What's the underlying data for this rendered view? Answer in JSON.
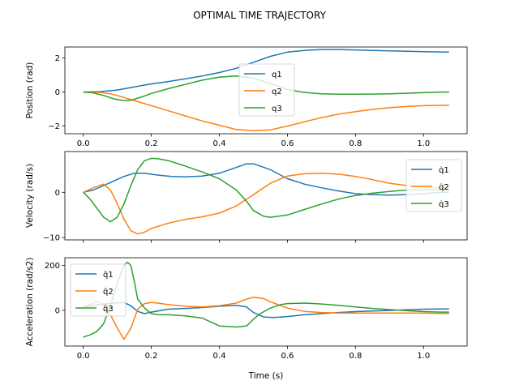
{
  "figure": {
    "title": "OPTIMAL TIME TRAJECTORY",
    "xlabel": "Time (s)"
  },
  "colors": {
    "q1": "#1f77b4",
    "q2": "#ff7f0e",
    "q3": "#2ca02c"
  },
  "chart_data": [
    {
      "type": "line",
      "ylabel": "Position (rad)",
      "xlim": [
        -0.054,
        1.128
      ],
      "ylim": [
        -2.45,
        2.65
      ],
      "xticks": [
        0.0,
        0.2,
        0.4,
        0.6,
        0.8,
        1.0
      ],
      "xtick_labels": [
        "0.0",
        "0.2",
        "0.4",
        "0.6",
        "0.8",
        "1.0"
      ],
      "yticks": [
        -2,
        0,
        2
      ],
      "ytick_labels": [
        "−2",
        "0",
        "2"
      ],
      "grid": false,
      "legend": "center",
      "series": [
        {
          "name": "q1",
          "x": [
            0,
            0.05,
            0.1,
            0.15,
            0.2,
            0.25,
            0.3,
            0.35,
            0.4,
            0.45,
            0.5,
            0.55,
            0.6,
            0.65,
            0.7,
            0.75,
            0.8,
            0.85,
            0.9,
            0.95,
            1.0,
            1.05,
            1.075
          ],
          "y": [
            0,
            0.03,
            0.12,
            0.3,
            0.48,
            0.62,
            0.78,
            0.95,
            1.15,
            1.4,
            1.75,
            2.1,
            2.35,
            2.45,
            2.5,
            2.5,
            2.48,
            2.45,
            2.42,
            2.4,
            2.38,
            2.36,
            2.35
          ]
        },
        {
          "name": "q2",
          "x": [
            0,
            0.05,
            0.08,
            0.1,
            0.15,
            0.2,
            0.25,
            0.3,
            0.35,
            0.4,
            0.45,
            0.5,
            0.55,
            0.6,
            0.65,
            0.7,
            0.75,
            0.8,
            0.85,
            0.9,
            0.95,
            1.0,
            1.05,
            1.075
          ],
          "y": [
            0,
            -0.02,
            -0.1,
            -0.2,
            -0.5,
            -0.8,
            -1.1,
            -1.4,
            -1.7,
            -1.95,
            -2.2,
            -2.28,
            -2.22,
            -2.0,
            -1.75,
            -1.5,
            -1.3,
            -1.15,
            -1.02,
            -0.92,
            -0.85,
            -0.8,
            -0.78,
            -0.78
          ]
        },
        {
          "name": "q3",
          "x": [
            0,
            0.03,
            0.06,
            0.09,
            0.12,
            0.14,
            0.17,
            0.2,
            0.25,
            0.3,
            0.35,
            0.4,
            0.45,
            0.5,
            0.55,
            0.6,
            0.65,
            0.7,
            0.75,
            0.8,
            0.85,
            0.9,
            0.95,
            1.0,
            1.05,
            1.075
          ],
          "y": [
            0,
            -0.05,
            -0.2,
            -0.4,
            -0.5,
            -0.48,
            -0.3,
            -0.08,
            0.2,
            0.45,
            0.7,
            0.88,
            0.95,
            0.82,
            0.5,
            0.15,
            -0.02,
            -0.1,
            -0.13,
            -0.13,
            -0.12,
            -0.1,
            -0.07,
            -0.03,
            0,
            0
          ]
        }
      ]
    },
    {
      "type": "line",
      "ylabel": "Velocity (rad/s)",
      "xlim": [
        -0.054,
        1.128
      ],
      "ylim": [
        -10.5,
        9.0
      ],
      "xticks": [
        0.0,
        0.2,
        0.4,
        0.6,
        0.8,
        1.0
      ],
      "xtick_labels": [
        "",
        "",
        "",
        "",
        "",
        ""
      ],
      "yticks": [
        -10,
        0
      ],
      "ytick_labels": [
        "−10",
        "0"
      ],
      "grid": false,
      "legend": "upper right",
      "series": [
        {
          "name": "q̇1",
          "x": [
            0,
            0.03,
            0.06,
            0.09,
            0.12,
            0.15,
            0.18,
            0.22,
            0.26,
            0.3,
            0.35,
            0.4,
            0.45,
            0.48,
            0.5,
            0.55,
            0.6,
            0.65,
            0.7,
            0.75,
            0.8,
            0.85,
            0.9,
            0.95,
            1.0,
            1.05,
            1.075
          ],
          "y": [
            0,
            0.5,
            1.5,
            2.5,
            3.5,
            4.2,
            4.2,
            3.8,
            3.5,
            3.4,
            3.6,
            4.2,
            5.5,
            6.3,
            6.3,
            5.0,
            3.0,
            1.8,
            1.0,
            0.3,
            -0.3,
            -0.5,
            -0.6,
            -0.5,
            -0.3,
            0.0,
            0.0
          ]
        },
        {
          "name": "q̇2",
          "x": [
            0,
            0.03,
            0.06,
            0.08,
            0.1,
            0.12,
            0.14,
            0.16,
            0.18,
            0.2,
            0.25,
            0.3,
            0.35,
            0.4,
            0.45,
            0.5,
            0.55,
            0.6,
            0.65,
            0.7,
            0.75,
            0.8,
            0.85,
            0.9,
            0.95,
            1.0,
            1.05,
            1.075
          ],
          "y": [
            0,
            1.0,
            1.8,
            0.5,
            -2.5,
            -6.0,
            -8.5,
            -9.2,
            -8.8,
            -8.0,
            -6.8,
            -6.0,
            -5.4,
            -4.6,
            -3.0,
            -0.5,
            2.0,
            3.6,
            4.1,
            4.2,
            4.0,
            3.5,
            2.8,
            2.0,
            1.5,
            1.2,
            1.0,
            0.9
          ]
        },
        {
          "name": "q̇3",
          "x": [
            0,
            0.02,
            0.04,
            0.06,
            0.08,
            0.1,
            0.12,
            0.14,
            0.16,
            0.18,
            0.2,
            0.22,
            0.25,
            0.3,
            0.35,
            0.4,
            0.45,
            0.48,
            0.5,
            0.53,
            0.55,
            0.6,
            0.65,
            0.7,
            0.75,
            0.8,
            0.85,
            0.9,
            0.95,
            1.0,
            1.05,
            1.075
          ],
          "y": [
            0,
            -1.5,
            -3.5,
            -5.5,
            -6.5,
            -5.5,
            -2.5,
            1.5,
            5.0,
            7.0,
            7.5,
            7.4,
            7.0,
            5.8,
            4.5,
            3.0,
            0.5,
            -2.0,
            -4.0,
            -5.3,
            -5.5,
            -5.0,
            -3.8,
            -2.6,
            -1.5,
            -0.7,
            -0.2,
            0.2,
            0.5,
            0.6,
            0.6,
            0.6
          ]
        }
      ]
    },
    {
      "type": "line",
      "ylabel": "Acceleration (rad/s2)",
      "xlim": [
        -0.054,
        1.128
      ],
      "ylim": [
        -160,
        235
      ],
      "xticks": [
        0.0,
        0.2,
        0.4,
        0.6,
        0.8,
        1.0
      ],
      "xtick_labels": [
        "0.0",
        "0.2",
        "0.4",
        "0.6",
        "0.8",
        "1.0"
      ],
      "yticks": [
        0,
        200
      ],
      "ytick_labels": [
        "0",
        "200"
      ],
      "grid": false,
      "legend": "upper left",
      "series": [
        {
          "name": "q̈1",
          "x": [
            0,
            0.03,
            0.06,
            0.09,
            0.12,
            0.14,
            0.16,
            0.18,
            0.2,
            0.25,
            0.3,
            0.35,
            0.4,
            0.45,
            0.48,
            0.5,
            0.53,
            0.56,
            0.6,
            0.65,
            0.7,
            0.75,
            0.8,
            0.85,
            0.9,
            0.95,
            1.0,
            1.05,
            1.075
          ],
          "y": [
            15,
            22,
            28,
            32,
            35,
            20,
            -5,
            -15,
            -8,
            5,
            8,
            12,
            18,
            22,
            15,
            -10,
            -30,
            -32,
            -28,
            -20,
            -15,
            -10,
            -6,
            -3,
            -1,
            2,
            5,
            6,
            6
          ]
        },
        {
          "name": "q̈2",
          "x": [
            0,
            0.02,
            0.04,
            0.06,
            0.08,
            0.1,
            0.12,
            0.14,
            0.16,
            0.18,
            0.2,
            0.22,
            0.25,
            0.3,
            0.35,
            0.4,
            0.45,
            0.48,
            0.5,
            0.53,
            0.55,
            0.6,
            0.65,
            0.7,
            0.75,
            0.8,
            0.85,
            0.9,
            0.95,
            1.0,
            1.05,
            1.075
          ],
          "y": [
            15,
            25,
            40,
            20,
            -20,
            -80,
            -130,
            -80,
            5,
            30,
            35,
            32,
            25,
            18,
            15,
            20,
            32,
            50,
            58,
            52,
            38,
            10,
            -5,
            -10,
            -12,
            -13,
            -12,
            -12,
            -12,
            -13,
            -14,
            -14
          ]
        },
        {
          "name": "q̈3",
          "x": [
            0,
            0.02,
            0.04,
            0.06,
            0.08,
            0.1,
            0.12,
            0.13,
            0.14,
            0.15,
            0.16,
            0.18,
            0.2,
            0.22,
            0.25,
            0.3,
            0.35,
            0.4,
            0.45,
            0.48,
            0.5,
            0.52,
            0.55,
            0.58,
            0.6,
            0.65,
            0.7,
            0.75,
            0.8,
            0.85,
            0.9,
            0.95,
            1.0,
            1.05,
            1.075
          ],
          "y": [
            -120,
            -110,
            -95,
            -60,
            20,
            120,
            200,
            215,
            200,
            130,
            50,
            10,
            -15,
            -20,
            -20,
            -25,
            -35,
            -70,
            -75,
            -70,
            -40,
            -15,
            10,
            25,
            30,
            32,
            28,
            22,
            15,
            8,
            3,
            -2,
            -6,
            -8,
            -8
          ]
        }
      ]
    }
  ]
}
